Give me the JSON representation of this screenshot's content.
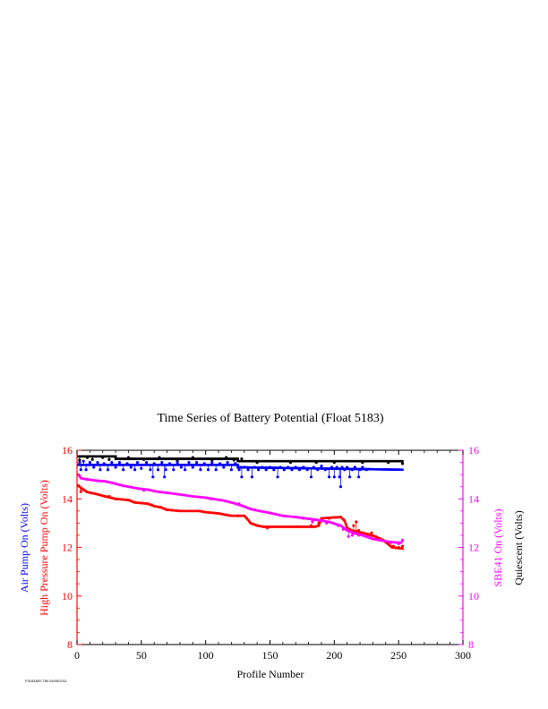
{
  "chart_data": {
    "type": "scatter",
    "title": "Time Series of Battery Potential (Float 5183)",
    "xlabel": "Profile Number",
    "xlim": [
      0,
      300
    ],
    "xticks": [
      0,
      50,
      100,
      150,
      200,
      250,
      300
    ],
    "left_axis": {
      "labels": [
        {
          "text": "Air Pump On (Volts)",
          "color": "#0000ff"
        },
        {
          "text": "High Pressure Pump On (Volts)",
          "color": "#ff0000"
        }
      ],
      "ylim": [
        8,
        16
      ],
      "yticks": [
        8,
        10,
        12,
        14,
        16
      ],
      "color": "#ff0000"
    },
    "right_axis": {
      "labels": [
        {
          "text": "SBE41 On (Volts)",
          "color": "#ff00ff"
        },
        {
          "text": "Quiescent (Volts)",
          "color": "#000000"
        }
      ],
      "ylim": [
        8,
        16
      ],
      "yticks": [
        8,
        10,
        12,
        14,
        16
      ],
      "color": "#ff00ff"
    },
    "series": [
      {
        "color": "#000000",
        "axis": "right",
        "segments": [
          [
            1,
            15.75
          ],
          [
            30,
            15.75
          ],
          [
            30,
            15.65
          ],
          [
            125,
            15.65
          ],
          [
            125,
            15.55
          ],
          [
            253,
            15.55
          ]
        ],
        "noise": [
          [
            2,
            15.6
          ],
          [
            8,
            15.7
          ],
          [
            12,
            15.62
          ],
          [
            20,
            15.7
          ],
          [
            25,
            15.62
          ],
          [
            40,
            15.7
          ],
          [
            52,
            15.62
          ],
          [
            64,
            15.7
          ],
          [
            78,
            15.58
          ],
          [
            90,
            15.7
          ],
          [
            105,
            15.6
          ],
          [
            116,
            15.7
          ],
          [
            122,
            15.6
          ],
          [
            128,
            15.65
          ],
          [
            140,
            15.5
          ],
          [
            166,
            15.5
          ],
          [
            186,
            15.5
          ],
          [
            200,
            15.5
          ],
          [
            222,
            15.5
          ],
          [
            242,
            15.5
          ],
          [
            253,
            15.45
          ]
        ]
      },
      {
        "color": "#0000ff",
        "axis": "left",
        "segments": [
          [
            1,
            15.4
          ],
          [
            125,
            15.4
          ],
          [
            125,
            15.3
          ],
          [
            253,
            15.2
          ]
        ],
        "noise": [
          [
            2,
            15.5
          ],
          [
            3,
            15.2
          ],
          [
            5,
            15.55
          ],
          [
            7,
            15.2
          ],
          [
            10,
            15.5
          ],
          [
            13,
            15.3
          ],
          [
            16,
            15.5
          ],
          [
            18,
            15.2
          ],
          [
            21,
            15.45
          ],
          [
            24,
            15.2
          ],
          [
            27,
            15.5
          ],
          [
            30,
            15.3
          ],
          [
            33,
            15.5
          ],
          [
            36,
            15.2
          ],
          [
            39,
            15.45
          ],
          [
            42,
            15.3
          ],
          [
            45,
            15.2
          ],
          [
            47,
            15.5
          ],
          [
            50,
            15.25
          ],
          [
            54,
            15.5
          ],
          [
            57,
            15.2
          ],
          [
            59,
            14.9
          ],
          [
            60,
            15.45
          ],
          [
            63,
            15.2
          ],
          [
            66,
            15.5
          ],
          [
            68,
            14.9
          ],
          [
            69,
            15.2
          ],
          [
            72,
            15.45
          ],
          [
            75,
            15.2
          ],
          [
            78,
            15.5
          ],
          [
            81,
            15.3
          ],
          [
            84,
            15.2
          ],
          [
            87,
            15.5
          ],
          [
            90,
            15.3
          ],
          [
            93,
            15.5
          ],
          [
            96,
            15.2
          ],
          [
            99,
            15.45
          ],
          [
            102,
            15.2
          ],
          [
            105,
            15.5
          ],
          [
            108,
            15.2
          ],
          [
            111,
            15.45
          ],
          [
            114,
            15.3
          ],
          [
            117,
            15.5
          ],
          [
            120,
            15.2
          ],
          [
            123,
            15.45
          ],
          [
            126,
            15.2
          ],
          [
            128,
            14.9
          ],
          [
            130,
            15.3
          ],
          [
            133,
            15.2
          ],
          [
            136,
            14.9
          ],
          [
            138,
            15.3
          ],
          [
            141,
            15.2
          ],
          [
            144,
            15.3
          ],
          [
            147,
            15.2
          ],
          [
            150,
            15.3
          ],
          [
            153,
            15.2
          ],
          [
            156,
            14.9
          ],
          [
            158,
            15.3
          ],
          [
            161,
            15.2
          ],
          [
            164,
            15.3
          ],
          [
            167,
            15.2
          ],
          [
            170,
            15.3
          ],
          [
            173,
            15.2
          ],
          [
            176,
            15.3
          ],
          [
            179,
            15.2
          ],
          [
            182,
            14.9
          ],
          [
            184,
            15.3
          ],
          [
            187,
            15.2
          ],
          [
            190,
            15.35
          ],
          [
            193,
            15.2
          ],
          [
            196,
            14.9
          ],
          [
            198,
            15.3
          ],
          [
            200,
            14.9
          ],
          [
            202,
            15.3
          ],
          [
            204,
            14.9
          ],
          [
            205,
            14.5
          ],
          [
            206,
            15.3
          ],
          [
            208,
            15.2
          ],
          [
            210,
            15.3
          ],
          [
            212,
            14.9
          ],
          [
            214,
            15.2
          ],
          [
            216,
            15.3
          ],
          [
            219,
            14.9
          ],
          [
            220,
            15.2
          ],
          [
            222,
            15.3
          ],
          [
            225,
            15.2
          ]
        ]
      },
      {
        "color": "#ff0000",
        "axis": "left",
        "segments": [
          [
            1,
            14.55
          ],
          [
            3,
            14.45
          ],
          [
            5,
            14.38
          ],
          [
            8,
            14.28
          ],
          [
            15,
            14.2
          ],
          [
            22,
            14.1
          ],
          [
            30,
            14.0
          ],
          [
            40,
            13.95
          ],
          [
            45,
            13.85
          ],
          [
            55,
            13.8
          ],
          [
            60,
            13.7
          ],
          [
            65,
            13.65
          ],
          [
            70,
            13.55
          ],
          [
            80,
            13.5
          ],
          [
            95,
            13.5
          ],
          [
            100,
            13.45
          ],
          [
            110,
            13.4
          ],
          [
            115,
            13.35
          ],
          [
            120,
            13.3
          ],
          [
            130,
            13.3
          ],
          [
            132,
            13.2
          ],
          [
            135,
            13.0
          ],
          [
            140,
            12.9
          ],
          [
            145,
            12.85
          ],
          [
            165,
            12.85
          ],
          [
            185,
            12.85
          ],
          [
            188,
            12.9
          ],
          [
            190,
            13.2
          ],
          [
            205,
            13.25
          ],
          [
            208,
            13.1
          ],
          [
            210,
            12.8
          ],
          [
            213,
            12.7
          ],
          [
            222,
            12.6
          ],
          [
            232,
            12.45
          ],
          [
            238,
            12.3
          ],
          [
            245,
            12.0
          ],
          [
            253,
            11.95
          ]
        ],
        "noise": [
          [
            3,
            14.3
          ],
          [
            25,
            14.1
          ],
          [
            58,
            13.75
          ],
          [
            125,
            13.3
          ],
          [
            148,
            12.8
          ],
          [
            172,
            12.85
          ],
          [
            182,
            12.9
          ],
          [
            188,
            13.0
          ],
          [
            196,
            13.2
          ],
          [
            212,
            12.75
          ],
          [
            215,
            12.9
          ],
          [
            217,
            13.05
          ],
          [
            219,
            12.7
          ],
          [
            226,
            12.55
          ],
          [
            229,
            12.6
          ],
          [
            233,
            12.4
          ],
          [
            242,
            12.2
          ],
          [
            246,
            12.05
          ],
          [
            250,
            12.0
          ],
          [
            253,
            12.05
          ]
        ]
      },
      {
        "color": "#ff00ff",
        "axis": "right",
        "segments": [
          [
            1,
            15.0
          ],
          [
            3,
            14.85
          ],
          [
            8,
            14.8
          ],
          [
            15,
            14.75
          ],
          [
            22,
            14.72
          ],
          [
            28,
            14.65
          ],
          [
            35,
            14.55
          ],
          [
            40,
            14.5
          ],
          [
            48,
            14.42
          ],
          [
            55,
            14.38
          ],
          [
            62,
            14.3
          ],
          [
            70,
            14.25
          ],
          [
            80,
            14.18
          ],
          [
            90,
            14.1
          ],
          [
            100,
            14.05
          ],
          [
            108,
            13.98
          ],
          [
            115,
            13.92
          ],
          [
            122,
            13.82
          ],
          [
            128,
            13.72
          ],
          [
            135,
            13.58
          ],
          [
            142,
            13.5
          ],
          [
            150,
            13.42
          ],
          [
            160,
            13.3
          ],
          [
            170,
            13.25
          ],
          [
            180,
            13.18
          ],
          [
            190,
            13.1
          ],
          [
            196,
            13.05
          ],
          [
            200,
            12.98
          ],
          [
            205,
            12.9
          ],
          [
            210,
            12.7
          ],
          [
            216,
            12.58
          ],
          [
            222,
            12.5
          ],
          [
            230,
            12.35
          ],
          [
            240,
            12.25
          ],
          [
            248,
            12.2
          ],
          [
            252,
            12.2
          ]
        ],
        "noise": [
          [
            2,
            14.95
          ],
          [
            52,
            14.35
          ],
          [
            104,
            14.0
          ],
          [
            126,
            13.8
          ],
          [
            138,
            13.55
          ],
          [
            176,
            13.2
          ],
          [
            183,
            13.05
          ],
          [
            186,
            13.15
          ],
          [
            194,
            13.0
          ],
          [
            203,
            12.9
          ],
          [
            207,
            12.75
          ],
          [
            211,
            12.45
          ],
          [
            214,
            12.5
          ],
          [
            219,
            12.5
          ],
          [
            226,
            12.45
          ],
          [
            236,
            12.3
          ],
          [
            244,
            12.2
          ],
          [
            250,
            12.15
          ],
          [
            253,
            12.3
          ]
        ]
      }
    ]
  },
  "footer": {
    "id_text": "F5183AIR.TIM 04/05/2011"
  }
}
